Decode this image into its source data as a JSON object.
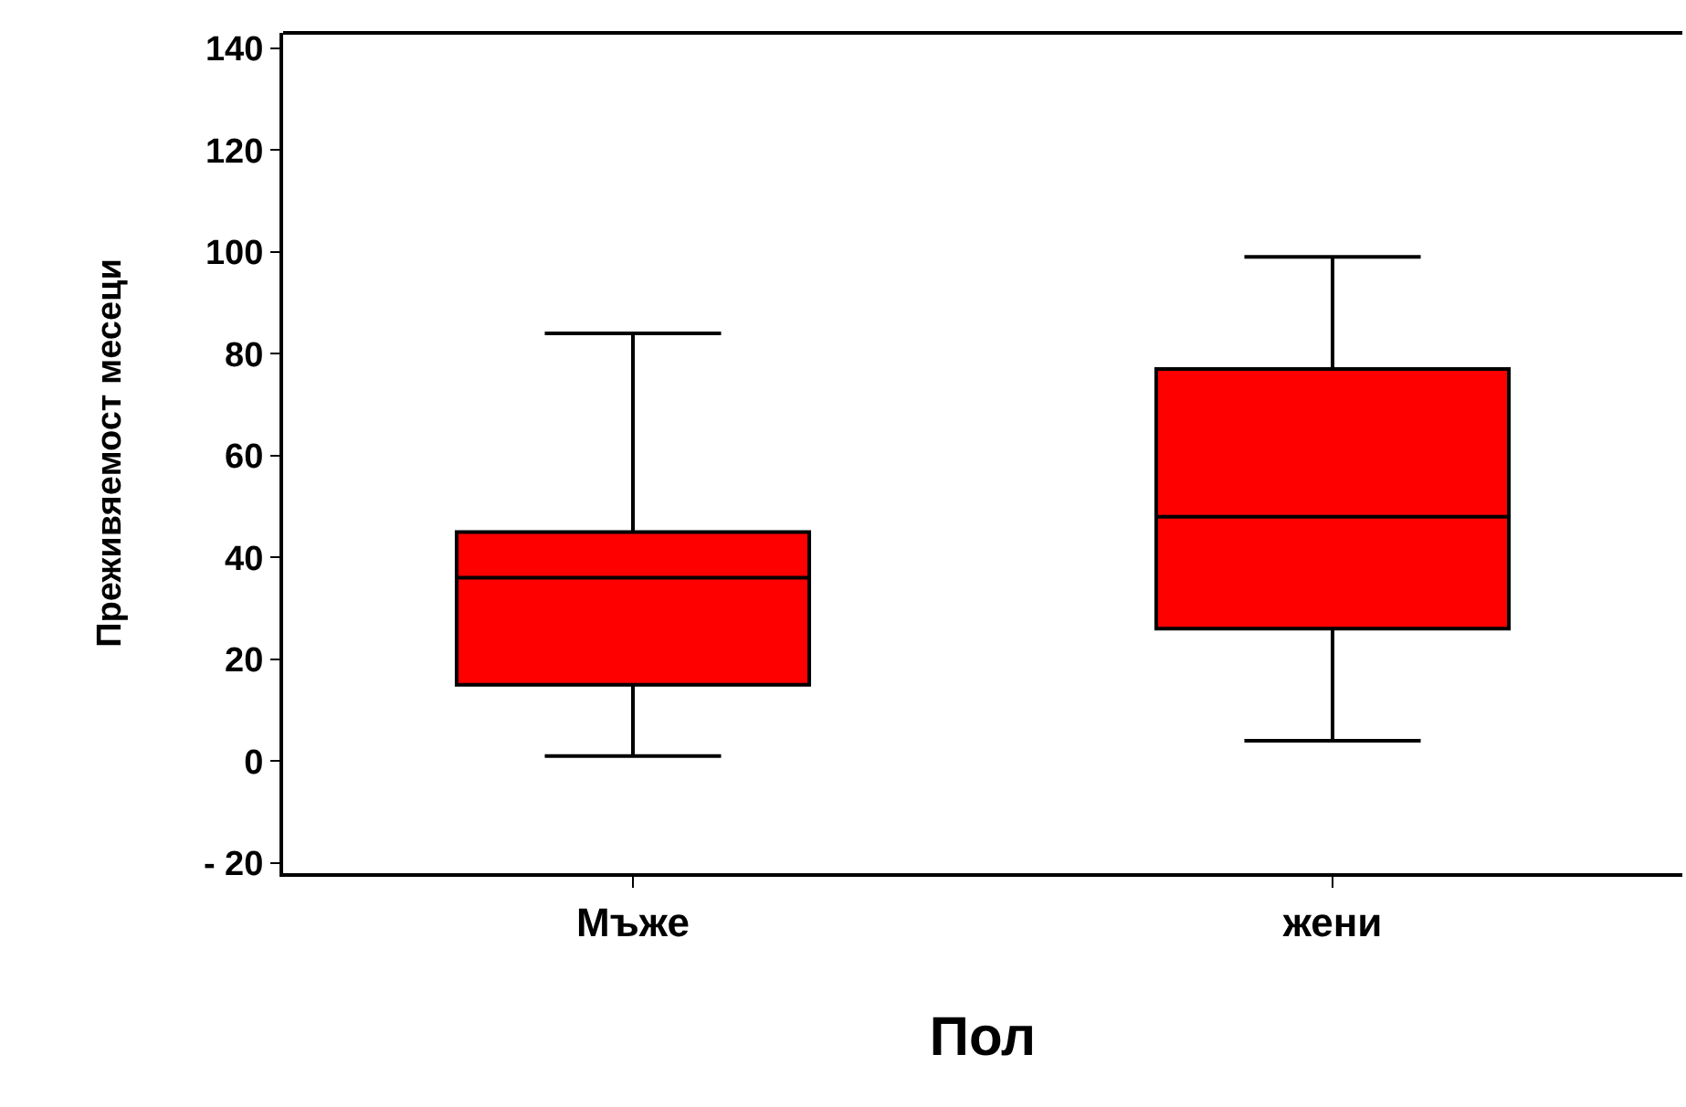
{
  "chart_data": {
    "type": "box",
    "xlabel": "Пол",
    "ylabel": "Преживяемост месеци",
    "categories": [
      "Мъже",
      "жени"
    ],
    "boxes": [
      {
        "low": 1,
        "q1": 15,
        "median": 36,
        "q3": 45,
        "high": 84
      },
      {
        "low": 4,
        "q1": 26,
        "median": 48,
        "q3": 77,
        "high": 99
      }
    ],
    "color": "#ff0000",
    "ylim": [
      -22,
      143
    ],
    "yticks": [
      {
        "value": -20,
        "label": "- 20"
      },
      0,
      20,
      40,
      60,
      80,
      100,
      120,
      140
    ],
    "grid": false,
    "legend": false
  }
}
